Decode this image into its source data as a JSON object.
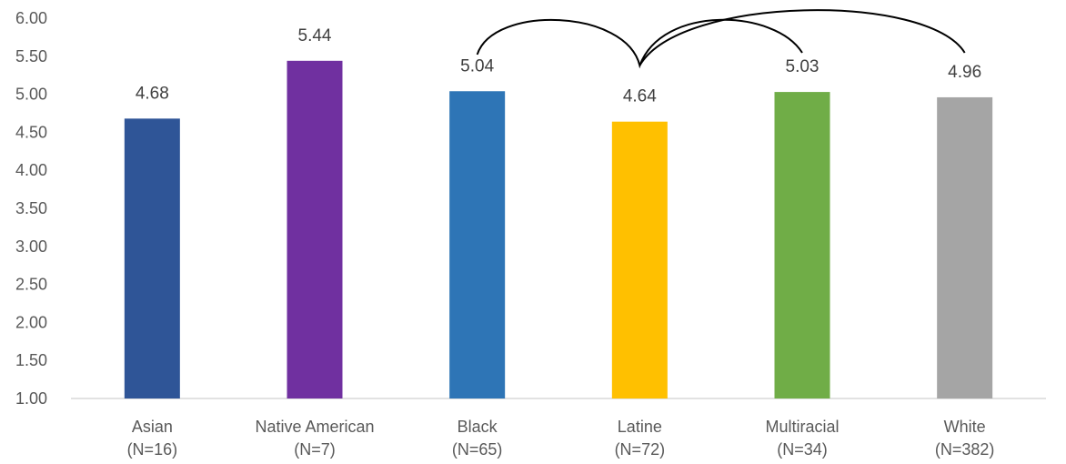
{
  "chart_data": {
    "type": "bar",
    "categories": [
      "Asian",
      "Native American",
      "Black",
      "Latine",
      "Multiracial",
      "White"
    ],
    "sample_sizes": [
      "(N=16)",
      "(N=7)",
      "(N=65)",
      "(N=72)",
      "(N=34)",
      "(N=382)"
    ],
    "values": [
      4.68,
      5.44,
      5.04,
      4.64,
      5.03,
      4.96
    ],
    "data_labels": [
      "4.68",
      "5.44",
      "5.04",
      "4.64",
      "5.03",
      "4.96"
    ],
    "colors": [
      "#2F5597",
      "#7030A0",
      "#2E75B6",
      "#FFC000",
      "#70AD47",
      "#A5A5A5"
    ],
    "ylim": [
      1.0,
      6.0
    ],
    "yticks": [
      "1.00",
      "1.50",
      "2.00",
      "2.50",
      "3.00",
      "3.50",
      "4.00",
      "4.50",
      "5.00",
      "5.50",
      "6.00"
    ],
    "grid": false,
    "legend": "none",
    "title": "",
    "xlabel": "",
    "ylabel": "",
    "annotations": [
      {
        "type": "significance-arc",
        "from": "Black",
        "to": "Multiracial",
        "via": "Latine"
      },
      {
        "type": "significance-arc",
        "from": "Latine",
        "to": "White"
      }
    ]
  }
}
